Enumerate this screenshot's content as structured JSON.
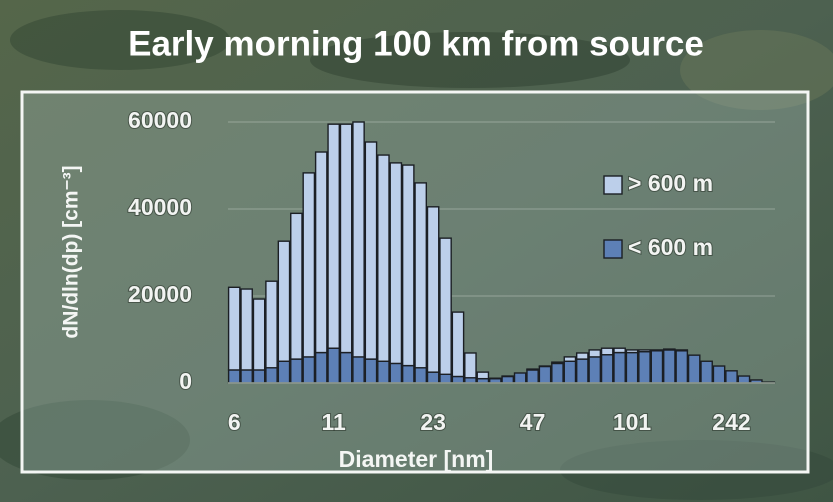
{
  "chart_data": {
    "type": "stacked_bar",
    "title": "Early morning 100 km from source",
    "x_label": "Diameter [nm]",
    "y_label": "dN/dln(dp) [cm⁻³]",
    "categories": [
      "6",
      null,
      null,
      null,
      null,
      null,
      null,
      null,
      "11",
      null,
      null,
      null,
      null,
      null,
      null,
      null,
      "23",
      null,
      null,
      null,
      null,
      null,
      null,
      null,
      "47",
      null,
      null,
      null,
      null,
      null,
      null,
      null,
      "101",
      null,
      null,
      null,
      null,
      null,
      null,
      null,
      "242",
      null,
      null,
      null
    ],
    "series": [
      {
        "name": "< 600 m",
        "color": "#5d80b6",
        "values": [
          3000,
          3000,
          3000,
          3500,
          5000,
          5500,
          6000,
          7000,
          8000,
          7000,
          6000,
          5500,
          5000,
          4500,
          4000,
          3500,
          2500,
          2000,
          1500,
          1200,
          1000,
          1000,
          1500,
          2300,
          3000,
          3800,
          4500,
          5000,
          5500,
          6000,
          6500,
          7000,
          7000,
          7200,
          7400,
          7600,
          7400,
          6400,
          5000,
          3900,
          2800,
          1600,
          700,
          200
        ]
      },
      {
        "name": "> 600 m",
        "color": "#bccfea",
        "values": [
          19000,
          18600,
          16300,
          19900,
          27600,
          33500,
          42300,
          46100,
          51500,
          52500,
          54000,
          49900,
          47400,
          46100,
          46100,
          42500,
          38000,
          31300,
          14800,
          5700,
          1500,
          100,
          100,
          0,
          200,
          100,
          300,
          1000,
          1400,
          1600,
          1500,
          1000,
          600,
          400,
          200,
          200,
          200,
          0,
          0,
          0,
          0,
          0,
          0,
          0
        ]
      }
    ],
    "ylim": [
      0,
      60000
    ],
    "yticks": [
      0,
      20000,
      40000,
      60000
    ],
    "grid": true,
    "legend": "right"
  }
}
